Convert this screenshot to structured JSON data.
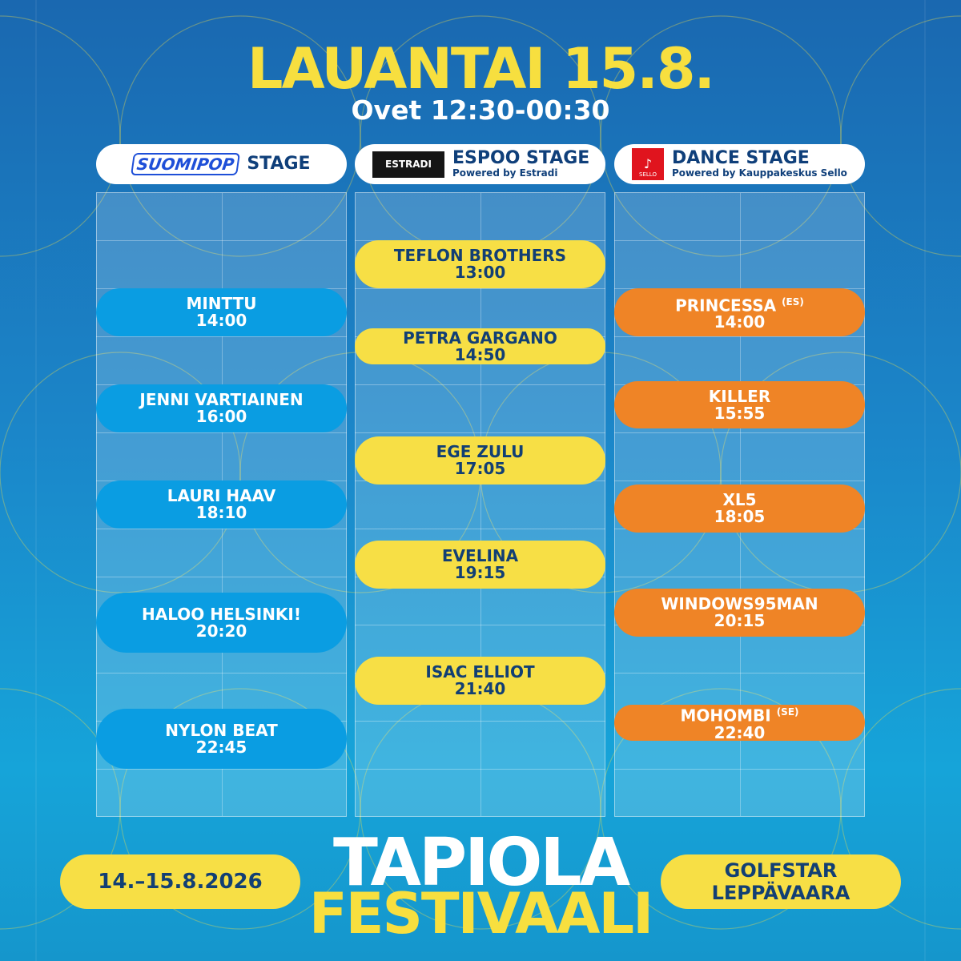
{
  "title": "LAUANTAI 15.8.",
  "doors": "Ovet 12:30-00:30",
  "stages": [
    {
      "logo": "RADIO SUOMIPOP",
      "name": "STAGE",
      "powered": ""
    },
    {
      "logo": "ESTRADI",
      "name": "ESPOO STAGE",
      "powered": "Powered by Estradi"
    },
    {
      "logo": "SELLO",
      "name": "DANCE STAGE",
      "powered": "Powered by Kauppakeskus Sello"
    }
  ],
  "lineup": {
    "suomipop": [
      {
        "artist": "MINTTU",
        "time": "14:00"
      },
      {
        "artist": "JENNI VARTIAINEN",
        "time": "16:00"
      },
      {
        "artist": "LAURI HAAV",
        "time": "18:10"
      },
      {
        "artist": "HALOO HELSINKI!",
        "time": "20:20"
      },
      {
        "artist": "NYLON BEAT",
        "time": "22:45"
      }
    ],
    "espoo": [
      {
        "artist": "TEFLON BROTHERS",
        "time": "13:00"
      },
      {
        "artist": "PETRA GARGANO",
        "time": "14:50"
      },
      {
        "artist": "EGE ZULU",
        "time": "17:05"
      },
      {
        "artist": "EVELINA",
        "time": "19:15"
      },
      {
        "artist": "ISAC ELLIOT",
        "time": "21:40"
      }
    ],
    "dance": [
      {
        "artist": "PRINCESSA",
        "country": "(ES)",
        "time": "14:00"
      },
      {
        "artist": "KILLER",
        "time": "15:55"
      },
      {
        "artist": "XL5",
        "time": "18:05"
      },
      {
        "artist": "WINDOWS95MAN",
        "time": "20:15"
      },
      {
        "artist": "MOHOMBI",
        "country": "(SE)",
        "time": "22:40"
      }
    ]
  },
  "footer": {
    "dates": "14.–15.8.2026",
    "brand_line1": "TAPIOLA",
    "brand_line2": "FESTIVAALI",
    "venue_line1": "GOLFSTAR",
    "venue_line2": "LEPPÄVAARA"
  },
  "colors": {
    "background": "#1a7fc4",
    "yellow": "#f7df45",
    "blue_pill": "#0a9de2",
    "orange_pill": "#ef8426",
    "navy_text": "#123f74"
  }
}
